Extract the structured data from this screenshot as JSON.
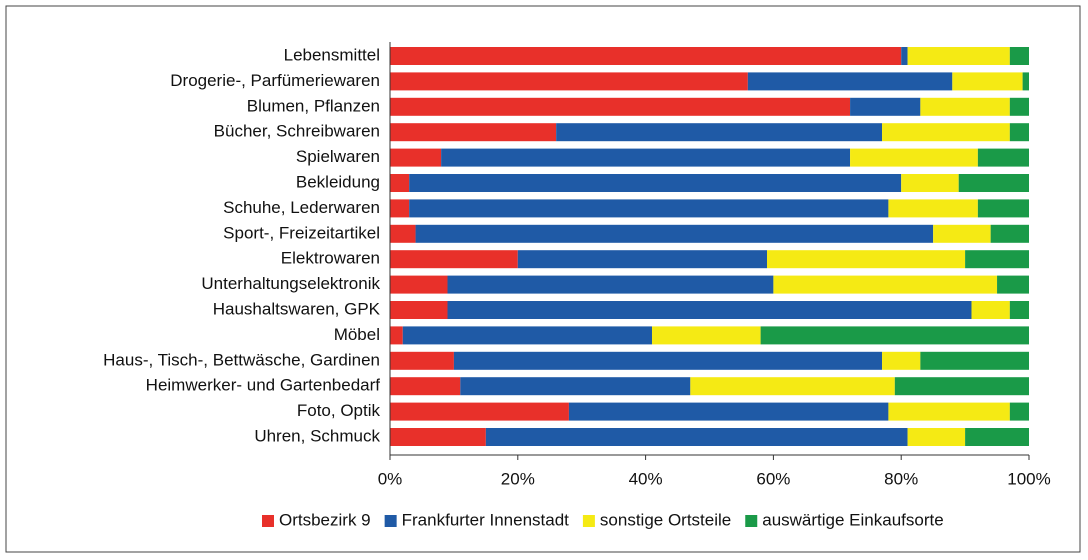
{
  "chart_data": {
    "type": "stacked_barh",
    "categories": [
      "Lebensmittel",
      "Drogerie-, Parfümeriewaren",
      "Blumen, Pflanzen",
      "Bücher, Schreibwaren",
      "Spielwaren",
      "Bekleidung",
      "Schuhe, Lederwaren",
      "Sport-, Freizeitartikel",
      "Elektrowaren",
      "Unterhaltungselektronik",
      "Haushaltswaren, GPK",
      "Möbel",
      "Haus-, Tisch-, Bettwäsche, Gardinen",
      "Heimwerker- und Gartenbedarf",
      "Foto, Optik",
      "Uhren, Schmuck"
    ],
    "series": [
      {
        "name": "Ortsbezirk 9",
        "color": "#e8302a",
        "values": [
          80,
          56,
          72,
          26,
          8,
          3,
          3,
          4,
          20,
          9,
          9,
          2,
          10,
          11,
          28,
          15
        ]
      },
      {
        "name": "Frankfurter Innenstadt",
        "color": "#1f5aa6",
        "values": [
          1,
          32,
          11,
          51,
          64,
          77,
          75,
          81,
          39,
          51,
          82,
          39,
          67,
          36,
          50,
          66
        ]
      },
      {
        "name": "sonstige Ortsteile",
        "color": "#f5ea14",
        "values": [
          16,
          11,
          14,
          20,
          20,
          9,
          14,
          9,
          31,
          35,
          6,
          17,
          6,
          32,
          19,
          9
        ]
      },
      {
        "name": "auswärtige Einkaufsorte",
        "color": "#1a9a48",
        "values": [
          3,
          1,
          3,
          3,
          8,
          11,
          8,
          6,
          10,
          5,
          3,
          42,
          17,
          21,
          3,
          10
        ]
      }
    ],
    "xlim": [
      0,
      100
    ],
    "xticks": [
      {
        "value": 0,
        "label": "0%"
      },
      {
        "value": 20,
        "label": "20%"
      },
      {
        "value": 40,
        "label": "40%"
      },
      {
        "value": 60,
        "label": "60%"
      },
      {
        "value": 80,
        "label": "80%"
      },
      {
        "value": 100,
        "label": "100%"
      }
    ],
    "legend": "bottom"
  }
}
